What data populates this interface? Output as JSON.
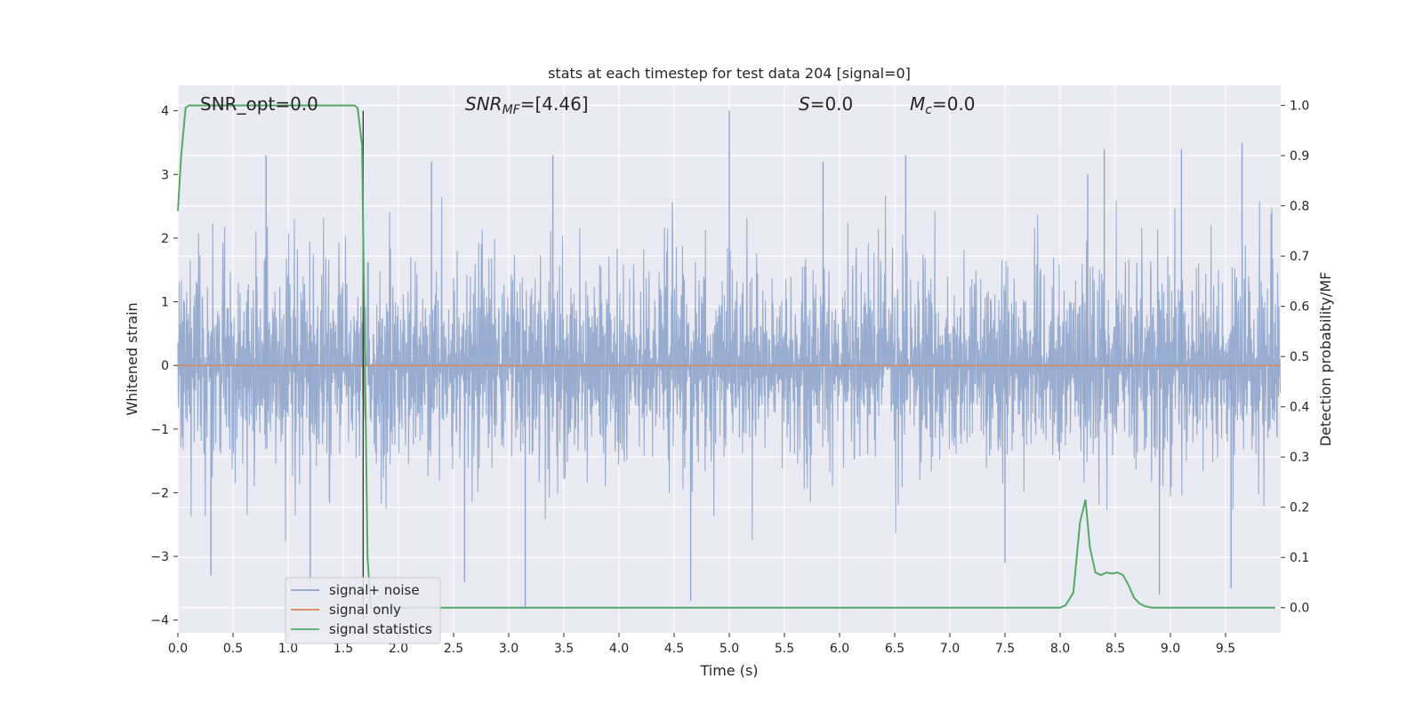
{
  "chart_data": {
    "type": "line",
    "title": "stats at each timestep for test data 204 [signal=0]",
    "xlabel": "Time (s)",
    "ylabel_left": "Whitened strain",
    "ylabel_right": "Detection probability/MF",
    "xlim": [
      0.0,
      10.0
    ],
    "ylim_left": [
      -4.2,
      4.4
    ],
    "ylim_right": [
      -0.05,
      1.04
    ],
    "xticks": [
      "0.0",
      "0.5",
      "1.0",
      "1.5",
      "2.0",
      "2.5",
      "3.0",
      "3.5",
      "4.0",
      "4.5",
      "5.0",
      "5.5",
      "6.0",
      "6.5",
      "7.0",
      "7.5",
      "8.0",
      "8.5",
      "9.0",
      "9.5"
    ],
    "yticks_left": [
      "4",
      "3",
      "2",
      "1",
      "0",
      "−1",
      "−2",
      "−3",
      "−4"
    ],
    "yticks_right": [
      "1.0",
      "0.9",
      "0.8",
      "0.7",
      "0.6",
      "0.5",
      "0.4",
      "0.3",
      "0.2",
      "0.1",
      "0.0"
    ],
    "grid": true,
    "legend_position": "lower-left",
    "annotations": {
      "snr_opt": "SNR_opt=0.0",
      "snr_mf_name": "SNR",
      "snr_mf_sub": "MF",
      "snr_mf_value": "=[4.46]",
      "s_name": "S",
      "s_value": "=0.0",
      "mc_name": "M",
      "mc_sub": "c",
      "mc_value": "=0.0"
    },
    "vertical_marker_x": 1.68,
    "series": [
      {
        "name": "signal+ noise",
        "axis": "left",
        "color": "#8fa5cc",
        "note_kind": "noise",
        "peaks": [
          [
            0.8,
            3.3
          ],
          [
            0.3,
            -3.3
          ],
          [
            1.2,
            -3.5
          ],
          [
            2.3,
            3.2
          ],
          [
            2.6,
            -3.4
          ],
          [
            3.15,
            -3.8
          ],
          [
            3.4,
            3.3
          ],
          [
            4.65,
            -3.7
          ],
          [
            5.0,
            4.0
          ],
          [
            5.85,
            3.2
          ],
          [
            6.6,
            3.3
          ],
          [
            7.5,
            -3.1
          ],
          [
            8.25,
            3.0
          ],
          [
            8.4,
            3.4
          ],
          [
            8.9,
            -3.6
          ],
          [
            9.1,
            3.4
          ],
          [
            9.55,
            -3.5
          ],
          [
            9.65,
            3.5
          ]
        ]
      },
      {
        "name": "signal only",
        "axis": "left",
        "color": "#dd8452",
        "x": [
          0.0,
          10.0
        ],
        "y": [
          0.0,
          0.0
        ]
      },
      {
        "name": "signal statistics",
        "axis": "right",
        "color": "#55a868",
        "x": [
          0.0,
          0.03,
          0.07,
          0.1,
          0.2,
          0.5,
          1.0,
          1.5,
          1.6,
          1.63,
          1.67,
          1.72,
          1.75,
          1.8,
          2.0,
          3.0,
          4.0,
          5.0,
          6.0,
          7.0,
          8.0,
          8.05,
          8.12,
          8.18,
          8.23,
          8.27,
          8.32,
          8.37,
          8.42,
          8.47,
          8.52,
          8.57,
          8.62,
          8.67,
          8.72,
          8.77,
          8.83,
          8.9,
          9.0,
          9.5,
          9.95
        ],
        "y": [
          0.79,
          0.9,
          0.995,
          1.0,
          1.0,
          1.0,
          1.0,
          1.0,
          1.0,
          0.995,
          0.92,
          0.1,
          0.0,
          0.0,
          0.0,
          0.0,
          0.0,
          0.0,
          0.0,
          0.0,
          0.0,
          0.005,
          0.03,
          0.17,
          0.215,
          0.12,
          0.07,
          0.065,
          0.07,
          0.068,
          0.07,
          0.065,
          0.045,
          0.02,
          0.008,
          0.003,
          0.0,
          0.0,
          0.0,
          0.0,
          0.0
        ]
      }
    ]
  }
}
